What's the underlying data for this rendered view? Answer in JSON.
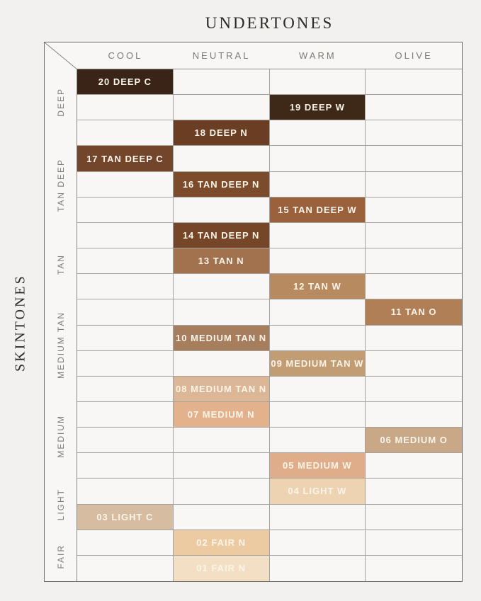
{
  "chart_data": {
    "type": "table",
    "title": "UNDERTONES",
    "column_axis_title": "UNDERTONES",
    "row_axis_title": "SKINTONES",
    "columns": [
      "COOL",
      "NEUTRAL",
      "WARM",
      "OLIVE"
    ],
    "row_groups": [
      {
        "label": "DEEP",
        "shades": [
          "20 DEEP C",
          "19 DEEP W",
          "18 DEEP N"
        ]
      },
      {
        "label": "TAN DEEP",
        "shades": [
          "17 TAN DEEP C",
          "16 TAN DEEP N",
          "15 TAN DEEP W",
          "14 TAN DEEP N"
        ]
      },
      {
        "label": "TAN",
        "shades": [
          "13 TAN N",
          "12 TAN W",
          "11 TAN O"
        ]
      },
      {
        "label": "MEDIUM TAN",
        "shades": [
          "10 MEDIUM TAN N",
          "09 MEDIUM TAN W",
          "08 MEDIUM TAN N"
        ]
      },
      {
        "label": "MEDIUM",
        "shades": [
          "07 MEDIUM N",
          "06 MEDIUM O",
          "05 MEDIUM W"
        ]
      },
      {
        "label": "LIGHT",
        "shades": [
          "04 LIGHT W",
          "03 LIGHT C"
        ]
      },
      {
        "label": "FAIR",
        "shades": [
          "02 FAIR N",
          "01 FAIR N"
        ]
      }
    ],
    "rows": [
      {
        "shade": "20 DEEP C",
        "skintone": "DEEP",
        "undertone": "COOL",
        "swatch_color": "#3A2317"
      },
      {
        "shade": "19 DEEP W",
        "skintone": "DEEP",
        "undertone": "WARM",
        "swatch_color": "#3E2817"
      },
      {
        "shade": "18 DEEP N",
        "skintone": "DEEP",
        "undertone": "NEUTRAL",
        "swatch_color": "#6B3D22"
      },
      {
        "shade": "17 TAN DEEP C",
        "skintone": "TAN DEEP",
        "undertone": "COOL",
        "swatch_color": "#73462B"
      },
      {
        "shade": "16 TAN DEEP N",
        "skintone": "TAN DEEP",
        "undertone": "NEUTRAL",
        "swatch_color": "#7C4B2C"
      },
      {
        "shade": "15 TAN DEEP W",
        "skintone": "TAN DEEP",
        "undertone": "WARM",
        "swatch_color": "#9A613C"
      },
      {
        "shade": "14 TAN DEEP N",
        "skintone": "TAN DEEP",
        "undertone": "NEUTRAL",
        "swatch_color": "#754627"
      },
      {
        "shade": "13 TAN N",
        "skintone": "TAN",
        "undertone": "NEUTRAL",
        "swatch_color": "#A1724D"
      },
      {
        "shade": "12 TAN W",
        "skintone": "TAN",
        "undertone": "WARM",
        "swatch_color": "#B88A60"
      },
      {
        "shade": "11 TAN O",
        "skintone": "TAN",
        "undertone": "OLIVE",
        "swatch_color": "#B07F55"
      },
      {
        "shade": "10 MEDIUM TAN N",
        "skintone": "MEDIUM TAN",
        "undertone": "NEUTRAL",
        "swatch_color": "#A67E5E"
      },
      {
        "shade": "09 MEDIUM TAN W",
        "skintone": "MEDIUM TAN",
        "undertone": "WARM",
        "swatch_color": "#C29D74"
      },
      {
        "shade": "08 MEDIUM TAN N",
        "skintone": "MEDIUM TAN",
        "undertone": "NEUTRAL",
        "swatch_color": "#DBB797"
      },
      {
        "shade": "07 MEDIUM N",
        "skintone": "MEDIUM",
        "undertone": "NEUTRAL",
        "swatch_color": "#E3B28C"
      },
      {
        "shade": "06 MEDIUM O",
        "skintone": "MEDIUM",
        "undertone": "OLIVE",
        "swatch_color": "#C9A887"
      },
      {
        "shade": "05 MEDIUM W",
        "skintone": "MEDIUM",
        "undertone": "WARM",
        "swatch_color": "#DFAD89"
      },
      {
        "shade": "04 LIGHT W",
        "skintone": "LIGHT",
        "undertone": "WARM",
        "swatch_color": "#EED3B3"
      },
      {
        "shade": "03 LIGHT C",
        "skintone": "LIGHT",
        "undertone": "COOL",
        "swatch_color": "#D6BDA1"
      },
      {
        "shade": "02 FAIR N",
        "skintone": "FAIR",
        "undertone": "NEUTRAL",
        "swatch_color": "#ECCBA2"
      },
      {
        "shade": "01 FAIR N",
        "skintone": "FAIR",
        "undertone": "NEUTRAL",
        "swatch_color": "#F3E0C4"
      }
    ],
    "layout": {
      "legend": false,
      "grid": true,
      "swatch_text_color": "#FBF4E9"
    }
  },
  "colors": {
    "page_background": "#F3F1EF",
    "cell_background": "#F8F7F5",
    "grid_line": "#A5A29D",
    "outer_border": "#6F6D69",
    "header_text": "#7D7A76",
    "title_text": "#2C2A26"
  }
}
